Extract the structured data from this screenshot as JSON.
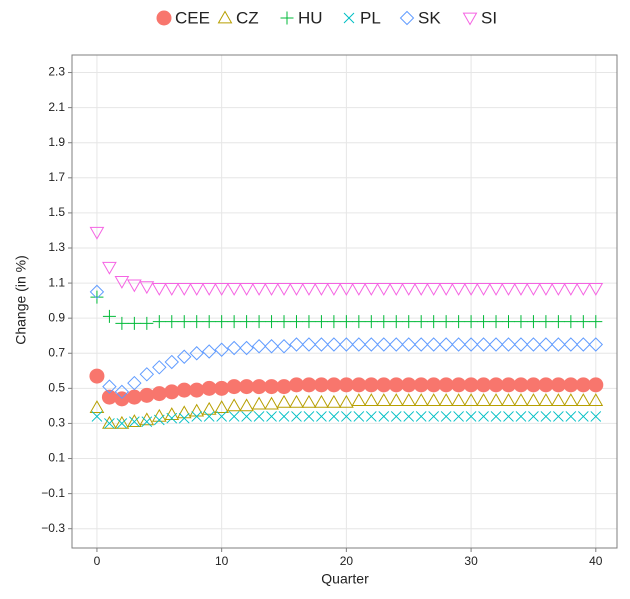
{
  "chart_data": {
    "type": "scatter",
    "x_label": "Quarter",
    "y_label": "Change (in %)",
    "x": [
      0,
      1,
      2,
      3,
      4,
      5,
      6,
      7,
      8,
      9,
      10,
      11,
      12,
      13,
      14,
      15,
      16,
      17,
      18,
      19,
      20,
      21,
      22,
      23,
      24,
      25,
      26,
      27,
      28,
      29,
      30,
      31,
      32,
      33,
      34,
      35,
      36,
      37,
      38,
      39,
      40
    ],
    "series": [
      {
        "name": "CEE",
        "color": "#F8766D",
        "marker": "circle",
        "values": [
          0.57,
          0.45,
          0.44,
          0.45,
          0.46,
          0.47,
          0.48,
          0.49,
          0.49,
          0.5,
          0.5,
          0.51,
          0.51,
          0.51,
          0.51,
          0.51,
          0.52,
          0.52,
          0.52,
          0.52,
          0.52,
          0.52,
          0.52,
          0.52,
          0.52,
          0.52,
          0.52,
          0.52,
          0.52,
          0.52,
          0.52,
          0.52,
          0.52,
          0.52,
          0.52,
          0.52,
          0.52,
          0.52,
          0.52,
          0.52,
          0.52
        ]
      },
      {
        "name": "CZ",
        "color": "#B79F00",
        "marker": "triangle-up",
        "values": [
          0.39,
          0.3,
          0.3,
          0.31,
          0.32,
          0.34,
          0.35,
          0.36,
          0.37,
          0.38,
          0.39,
          0.4,
          0.4,
          0.41,
          0.41,
          0.42,
          0.42,
          0.42,
          0.42,
          0.42,
          0.42,
          0.43,
          0.43,
          0.43,
          0.43,
          0.43,
          0.43,
          0.43,
          0.43,
          0.43,
          0.43,
          0.43,
          0.43,
          0.43,
          0.43,
          0.43,
          0.43,
          0.43,
          0.43,
          0.43,
          0.43
        ]
      },
      {
        "name": "HU",
        "color": "#00BA38",
        "marker": "plus",
        "values": [
          1.02,
          0.91,
          0.87,
          0.87,
          0.87,
          0.88,
          0.88,
          0.88,
          0.88,
          0.88,
          0.88,
          0.88,
          0.88,
          0.88,
          0.88,
          0.88,
          0.88,
          0.88,
          0.88,
          0.88,
          0.88,
          0.88,
          0.88,
          0.88,
          0.88,
          0.88,
          0.88,
          0.88,
          0.88,
          0.88,
          0.88,
          0.88,
          0.88,
          0.88,
          0.88,
          0.88,
          0.88,
          0.88,
          0.88,
          0.88,
          0.88
        ]
      },
      {
        "name": "PL",
        "color": "#00BFC4",
        "marker": "cross",
        "values": [
          0.34,
          0.3,
          0.3,
          0.31,
          0.31,
          0.32,
          0.33,
          0.33,
          0.34,
          0.34,
          0.34,
          0.34,
          0.34,
          0.34,
          0.34,
          0.34,
          0.34,
          0.34,
          0.34,
          0.34,
          0.34,
          0.34,
          0.34,
          0.34,
          0.34,
          0.34,
          0.34,
          0.34,
          0.34,
          0.34,
          0.34,
          0.34,
          0.34,
          0.34,
          0.34,
          0.34,
          0.34,
          0.34,
          0.34,
          0.34,
          0.34
        ]
      },
      {
        "name": "SK",
        "color": "#619CFF",
        "marker": "diamond",
        "values": [
          1.05,
          0.51,
          0.48,
          0.53,
          0.58,
          0.62,
          0.65,
          0.68,
          0.7,
          0.71,
          0.72,
          0.73,
          0.73,
          0.74,
          0.74,
          0.74,
          0.75,
          0.75,
          0.75,
          0.75,
          0.75,
          0.75,
          0.75,
          0.75,
          0.75,
          0.75,
          0.75,
          0.75,
          0.75,
          0.75,
          0.75,
          0.75,
          0.75,
          0.75,
          0.75,
          0.75,
          0.75,
          0.75,
          0.75,
          0.75,
          0.75
        ]
      },
      {
        "name": "SI",
        "color": "#F564E3",
        "marker": "triangle-down",
        "values": [
          1.39,
          1.19,
          1.11,
          1.09,
          1.08,
          1.07,
          1.07,
          1.07,
          1.07,
          1.07,
          1.07,
          1.07,
          1.07,
          1.07,
          1.07,
          1.07,
          1.07,
          1.07,
          1.07,
          1.07,
          1.07,
          1.07,
          1.07,
          1.07,
          1.07,
          1.07,
          1.07,
          1.07,
          1.07,
          1.07,
          1.07,
          1.07,
          1.07,
          1.07,
          1.07,
          1.07,
          1.07,
          1.07,
          1.07,
          1.07,
          1.07
        ]
      }
    ],
    "xlim": [
      -2,
      41.7
    ],
    "xticks": [
      0,
      10,
      20,
      30,
      40
    ],
    "ylim": [
      -0.41,
      2.4
    ],
    "yticks": [
      {
        "value": -0.3,
        "label": "−0.3"
      },
      {
        "value": -0.1,
        "label": "−0.1"
      },
      0.1,
      0.3,
      0.5,
      0.7,
      0.9,
      1.1,
      1.3,
      1.5,
      1.7,
      1.9,
      2.1,
      2.3
    ],
    "grid": true,
    "legend": "top"
  }
}
